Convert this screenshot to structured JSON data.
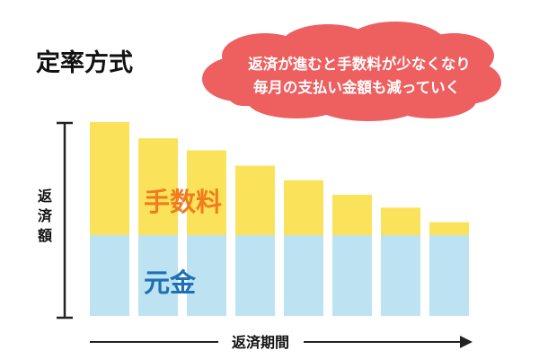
{
  "title": "定率方式",
  "callout": {
    "line1": "返済が進むと手数料が少なくなり",
    "line2": "毎月の支払い金額も減っていく"
  },
  "y_axis_label": [
    "返",
    "済",
    "額"
  ],
  "x_axis_label": "返済期間",
  "segment_labels": {
    "fee": "手数料",
    "principal": "元金"
  },
  "colors": {
    "fee": "#FAE35A",
    "principal": "#BDE3F2",
    "callout": "#EE5F5F",
    "fee_label": "#F07C1E",
    "principal_label": "#1E6FB5",
    "axis": "#222222"
  },
  "chart_data": {
    "type": "bar",
    "stacked": true,
    "note": "values are relative amounts; no numeric axis is printed",
    "categories": [
      "1",
      "2",
      "3",
      "4",
      "5",
      "6",
      "7",
      "8"
    ],
    "series": [
      {
        "name": "元金",
        "values": [
          10,
          10,
          10,
          10,
          10,
          10,
          10,
          10
        ]
      },
      {
        "name": "手数料",
        "values": [
          14,
          12,
          10.5,
          8.6,
          6.8,
          5,
          3.4,
          1.6
        ]
      }
    ],
    "ylim": [
      0,
      24
    ]
  }
}
